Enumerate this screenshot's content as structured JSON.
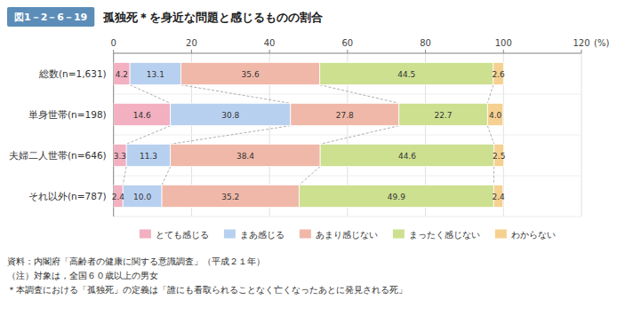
{
  "chart_data": {
    "type": "bar",
    "orientation": "horizontal",
    "stacked": true,
    "title": "孤独死＊を身近な問題と感じるものの割合",
    "subtitle": "図1－2－6－19",
    "xlabel": "(%)",
    "categories": [
      "総数(n=1,631)",
      "単身世帯(n=198)",
      "夫婦二人世帯(n=646)",
      "それ以外(n=787)"
    ],
    "series": [
      {
        "name": "とても感じる",
        "color": "#f2b0c0",
        "values": [
          4.2,
          14.6,
          3.3,
          2.4
        ],
        "value_labels": [
          "4.2",
          "14.6",
          "3.3",
          "2.4"
        ]
      },
      {
        "name": "まあ感じる",
        "color": "#b8d0f0",
        "values": [
          13.1,
          30.8,
          11.3,
          10.0
        ],
        "value_labels": [
          "13.1",
          "30.8",
          "11.3",
          "10.0"
        ]
      },
      {
        "name": "あまり感じない",
        "color": "#f0b8a8",
        "values": [
          35.6,
          27.8,
          38.4,
          35.2
        ],
        "value_labels": [
          "35.6",
          "27.8",
          "38.4",
          "35.2"
        ]
      },
      {
        "name": "まったく感じない",
        "color": "#cce090",
        "values": [
          44.5,
          22.7,
          44.6,
          49.9
        ],
        "value_labels": [
          "44.5",
          "22.7",
          "44.6",
          "49.9"
        ]
      },
      {
        "name": "わからない",
        "color": "#f5d090",
        "values": [
          2.6,
          4.0,
          2.5,
          2.4
        ],
        "value_labels": [
          "2.6",
          "4.0",
          "2.5",
          "2.4"
        ]
      }
    ],
    "xlim": [
      0,
      120
    ],
    "xticks": [
      0,
      20,
      40,
      60,
      80,
      100,
      120
    ],
    "grid": true,
    "legend": "bottom",
    "data_labels": true,
    "annotations": [
      "資料：内閣府「高齢者の健康に関する意識調査」（平成２１年）",
      "（注）対象は，全国６０歳以上の男女",
      "＊本調査における「孤独死」の定義は「誰にも看取られることなく亡くなったあとに発見される死」"
    ]
  }
}
